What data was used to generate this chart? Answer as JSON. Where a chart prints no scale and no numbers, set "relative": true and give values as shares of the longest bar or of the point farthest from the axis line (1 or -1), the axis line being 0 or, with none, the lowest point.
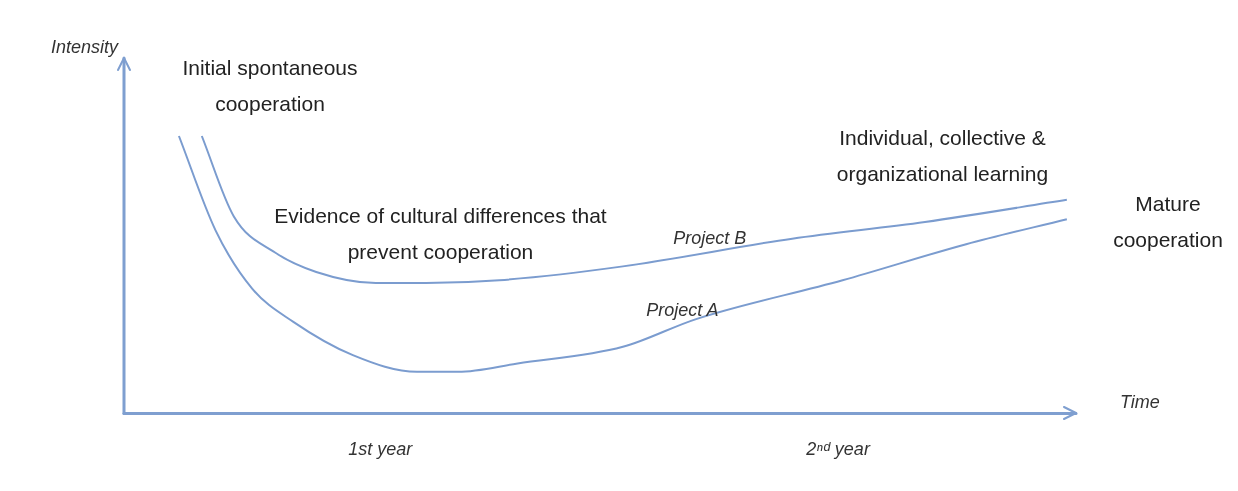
{
  "chart_data": {
    "type": "line",
    "relative": true,
    "xlabel": "Time",
    "ylabel": "Intensity",
    "xlim": [
      0.44,
      2.52
    ],
    "xticks": [
      {
        "value": 1,
        "label": "1st year"
      },
      {
        "value": 2,
        "label": "2ⁿᵈ year"
      }
    ],
    "grid": false,
    "legend": false,
    "marker": "none",
    "line_style": "solid",
    "series": [
      {
        "name": "Project A",
        "color": "#7b9ccf",
        "x": [
          0.56,
          0.64,
          0.72,
          0.81,
          0.94,
          1.08,
          1.17,
          1.3,
          1.53,
          1.69,
          2.01,
          2.28,
          2.5
        ],
        "values": [
          1.0,
          0.66,
          0.45,
          0.33,
          0.21,
          0.15,
          0.15,
          0.18,
          0.24,
          0.34,
          0.48,
          0.61,
          0.7
        ]
      },
      {
        "name": "Project B",
        "color": "#7b9ccf",
        "x": [
          0.61,
          0.68,
          0.77,
          0.86,
          0.99,
          1.1,
          1.26,
          1.53,
          1.9,
          2.19,
          2.5
        ],
        "values": [
          1.0,
          0.71,
          0.58,
          0.51,
          0.47,
          0.47,
          0.48,
          0.53,
          0.63,
          0.69,
          0.77
        ]
      }
    ],
    "annotations": [
      "Initial spontaneous cooperation",
      "Evidence of cultural differences that prevent cooperation",
      "Individual, collective & organizational learning",
      "Mature cooperation"
    ]
  }
}
